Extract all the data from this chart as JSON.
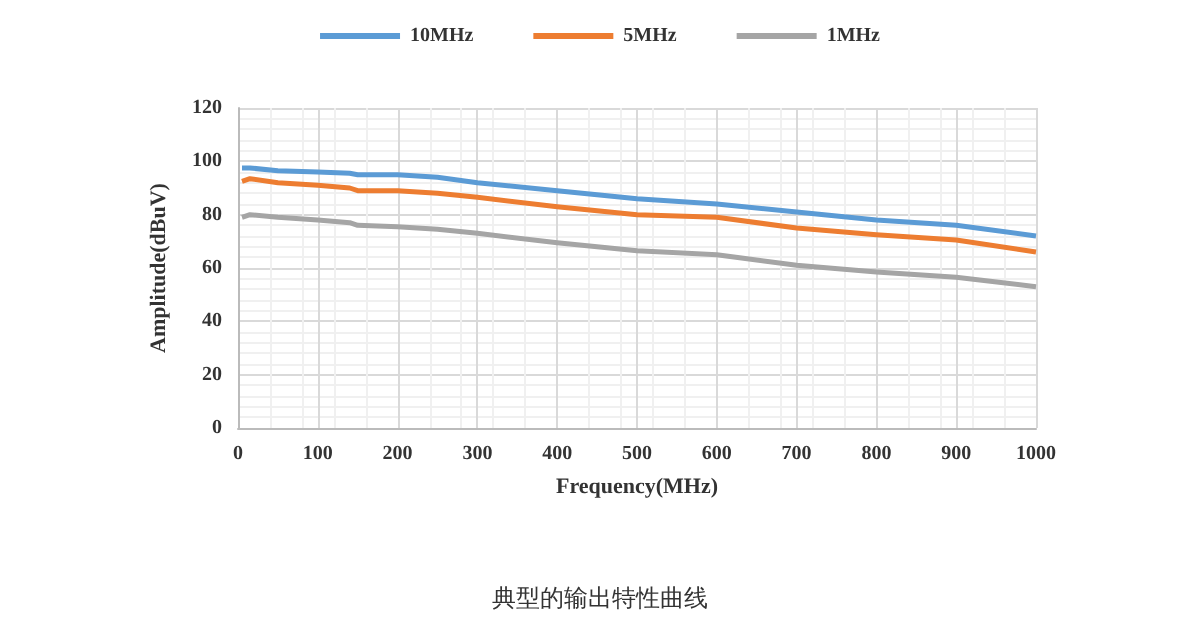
{
  "chart_data": {
    "type": "line",
    "xlabel": "Frequency(MHz)",
    "ylabel": "Amplitude(dBuV)",
    "annotations": [
      "典型的输出特性曲线"
    ],
    "x": [
      5,
      15,
      50,
      100,
      140,
      150,
      200,
      250,
      300,
      400,
      500,
      600,
      700,
      800,
      900,
      1000
    ],
    "series": [
      {
        "name": "10MHz",
        "color": "#5b9bd5",
        "values": [
          97.5,
          97.5,
          96.5,
          96,
          95.5,
          95,
          95,
          94,
          92,
          89,
          86,
          84,
          81,
          78,
          76,
          72
        ]
      },
      {
        "name": "5MHz",
        "color": "#ed7d31",
        "values": [
          92.5,
          93.5,
          92,
          91,
          90,
          89,
          89,
          88,
          86.5,
          83,
          80,
          79,
          75,
          72.5,
          70.5,
          66
        ]
      },
      {
        "name": "1MHz",
        "color": "#a5a5a5",
        "values": [
          79,
          80,
          79,
          78,
          77,
          76,
          75.5,
          74.5,
          73,
          69.5,
          66.5,
          65,
          61,
          58.5,
          56.5,
          53
        ]
      }
    ],
    "xlim": [
      0,
      1000
    ],
    "xticks": [
      0,
      100,
      200,
      300,
      400,
      500,
      600,
      700,
      800,
      900,
      1000
    ],
    "ylim": [
      0,
      120
    ],
    "yticks": [
      0,
      20,
      40,
      60,
      80,
      100,
      120
    ],
    "grid": true,
    "legend": "top",
    "marker": "none",
    "line_style": "solid"
  }
}
